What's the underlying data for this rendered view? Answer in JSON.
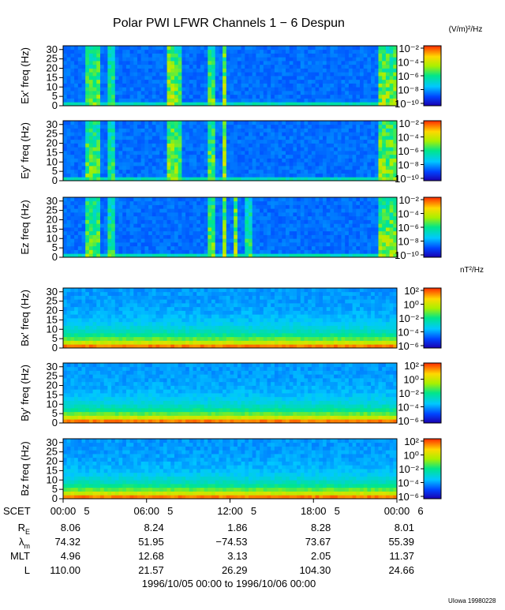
{
  "title": "Polar PWI LFWR Channels 1 − 6 Despun",
  "credit": "UIowa 19980228",
  "date_range": "1996/10/05 00:00 to 1996/10/06 00:00",
  "colorbar_units": {
    "electric": "(V/m)²/Hz",
    "magnetic": "nT²/Hz"
  },
  "chart_data": {
    "type": "heatmap",
    "x_axis": {
      "label": "SCET",
      "range_hours": [
        0,
        24
      ],
      "major_tick_labels": [
        "00:00",
        "06:00",
        "12:00",
        "18:00",
        "00:00"
      ],
      "minor_tick_labels": [
        "5",
        "5",
        "5",
        "5",
        "6"
      ]
    },
    "ephemeris": {
      "columns": [
        "00:00",
        "06:00",
        "12:00",
        "18:00",
        "00:00"
      ],
      "rows": [
        {
          "label": "R",
          "sub": "E",
          "values": [
            "8.06",
            "8.24",
            "1.86",
            "8.28",
            "8.01"
          ]
        },
        {
          "label": "λ",
          "sub": "m",
          "values": [
            "74.32",
            "51.95",
            "−74.53",
            "73.67",
            "55.39"
          ]
        },
        {
          "label": "MLT",
          "sub": "",
          "values": [
            "4.96",
            "12.68",
            "3.13",
            "2.05",
            "11.37"
          ]
        },
        {
          "label": "L",
          "sub": "",
          "values": [
            "110.00",
            "21.57",
            "26.29",
            "104.30",
            "24.66"
          ]
        }
      ]
    },
    "panels": [
      {
        "ylabel": "Ex' freq (Hz)",
        "yticks": [
          "0",
          "5",
          "10",
          "15",
          "20",
          "25",
          "30"
        ],
        "ylim": [
          0,
          32
        ],
        "colorbar": {
          "labels": [
            "10⁻²",
            "10⁻⁴",
            "10⁻⁶",
            "10⁻⁸",
            "10⁻¹⁰"
          ],
          "range_log10": [
            -10,
            -2
          ]
        },
        "kind": "electric",
        "bursts": [
          [
            1.7,
            2.6,
            0.9
          ],
          [
            3.1,
            3.8,
            0.8
          ],
          [
            7.4,
            7.9,
            1.0
          ],
          [
            8.1,
            8.6,
            0.9
          ],
          [
            10.4,
            10.8,
            0.9
          ],
          [
            11.5,
            11.8,
            1.0
          ],
          [
            12.2,
            12.4,
            1.0
          ],
          [
            22.6,
            24.0,
            0.95
          ]
        ]
      },
      {
        "ylabel": "Ey' freq (Hz)",
        "yticks": [
          "0",
          "5",
          "10",
          "15",
          "20",
          "25",
          "30"
        ],
        "ylim": [
          0,
          32
        ],
        "colorbar": {
          "labels": [
            "10⁻²",
            "10⁻⁴",
            "10⁻⁶",
            "10⁻⁸",
            "10⁻¹⁰"
          ],
          "range_log10": [
            -10,
            -2
          ]
        },
        "kind": "electric",
        "bursts": [
          [
            1.7,
            2.6,
            0.9
          ],
          [
            3.1,
            3.8,
            0.8
          ],
          [
            7.4,
            7.9,
            1.0
          ],
          [
            8.1,
            8.6,
            0.9
          ],
          [
            10.4,
            10.8,
            0.9
          ],
          [
            11.5,
            11.8,
            1.0
          ],
          [
            12.2,
            12.4,
            1.0
          ],
          [
            22.6,
            24.0,
            0.95
          ]
        ]
      },
      {
        "ylabel": "Ez freq (Hz)",
        "yticks": [
          "0",
          "5",
          "10",
          "15",
          "20",
          "25",
          "30"
        ],
        "ylim": [
          0,
          32
        ],
        "colorbar": {
          "labels": [
            "10⁻²",
            "10⁻⁴",
            "10⁻⁶",
            "10⁻⁸",
            "10⁻¹⁰"
          ],
          "range_log10": [
            -10,
            -2
          ]
        },
        "kind": "electric",
        "bursts": [
          [
            1.7,
            2.6,
            0.9
          ],
          [
            3.1,
            3.8,
            0.8
          ],
          [
            10.4,
            10.8,
            0.9
          ],
          [
            11.5,
            11.8,
            1.0
          ],
          [
            12.2,
            12.6,
            1.0
          ],
          [
            13.2,
            13.6,
            0.8
          ],
          [
            22.6,
            24.0,
            0.95
          ]
        ]
      },
      {
        "ylabel": "Bx' freq (Hz)",
        "yticks": [
          "0",
          "5",
          "10",
          "15",
          "20",
          "25",
          "30"
        ],
        "ylim": [
          0,
          32
        ],
        "colorbar": {
          "labels": [
            "10²",
            "10⁰",
            "10⁻²",
            "10⁻⁴",
            "10⁻⁶"
          ],
          "range_log10": [
            -6,
            2
          ]
        },
        "kind": "magnetic",
        "bursts": []
      },
      {
        "ylabel": "By' freq (Hz)",
        "yticks": [
          "0",
          "5",
          "10",
          "15",
          "20",
          "25",
          "30"
        ],
        "ylim": [
          0,
          32
        ],
        "colorbar": {
          "labels": [
            "10²",
            "10⁰",
            "10⁻²",
            "10⁻⁴",
            "10⁻⁶"
          ],
          "range_log10": [
            -6,
            2
          ]
        },
        "kind": "magnetic",
        "bursts": []
      },
      {
        "ylabel": "Bz freq (Hz)",
        "yticks": [
          "0",
          "5",
          "10",
          "15",
          "20",
          "25",
          "30"
        ],
        "ylim": [
          0,
          32
        ],
        "colorbar": {
          "labels": [
            "10²",
            "10⁰",
            "10⁻²",
            "10⁻⁴",
            "10⁻⁶"
          ],
          "range_log10": [
            -6,
            2
          ]
        },
        "kind": "magnetic",
        "bursts": []
      }
    ]
  }
}
